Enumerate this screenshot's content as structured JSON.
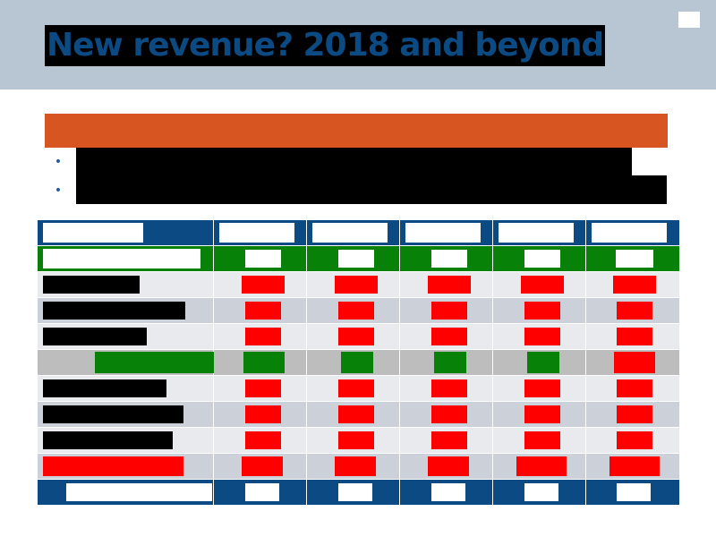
{
  "slide": {
    "title": "New revenue? 2018 and beyond"
  },
  "colors": {
    "header_bg": "#b8c5d3",
    "title_text": "#0b4a83",
    "accent_orange": "#d75520",
    "table_navy": "#0b4a83",
    "status_green": "#078107",
    "status_red": "#ff0000"
  },
  "bullets": [
    {
      "icon": "bullet-icon",
      "glyph": "•"
    },
    {
      "icon": "bullet-icon",
      "glyph": "•"
    }
  ],
  "table": {
    "column_count": 6,
    "rows": [
      {
        "kind": "header",
        "label": "",
        "cells": [
          "",
          "",
          "",
          "",
          ""
        ]
      },
      {
        "kind": "green",
        "label": "",
        "cells": [
          "",
          "",
          "",
          "",
          ""
        ]
      },
      {
        "kind": "data",
        "label": "",
        "cells": [
          "red",
          "red",
          "red",
          "red",
          "red"
        ]
      },
      {
        "kind": "data",
        "label": "",
        "cells": [
          "red",
          "red",
          "red",
          "red",
          "red"
        ]
      },
      {
        "kind": "data",
        "label": "",
        "cells": [
          "red",
          "red",
          "red",
          "red",
          "red"
        ]
      },
      {
        "kind": "highlight",
        "label": "",
        "cells": [
          "green",
          "green",
          "green",
          "green",
          "red"
        ]
      },
      {
        "kind": "data",
        "label": "",
        "cells": [
          "red",
          "red",
          "red",
          "red",
          "red"
        ]
      },
      {
        "kind": "data",
        "label": "",
        "cells": [
          "red",
          "red",
          "red",
          "red",
          "red"
        ]
      },
      {
        "kind": "data",
        "label": "",
        "cells": [
          "red",
          "red",
          "red",
          "red",
          "red"
        ]
      },
      {
        "kind": "data-red-label",
        "label": "",
        "cells": [
          "red",
          "red",
          "red",
          "red",
          "red"
        ]
      },
      {
        "kind": "footer",
        "label": "",
        "cells": [
          "",
          "",
          "",
          "",
          ""
        ]
      }
    ]
  }
}
